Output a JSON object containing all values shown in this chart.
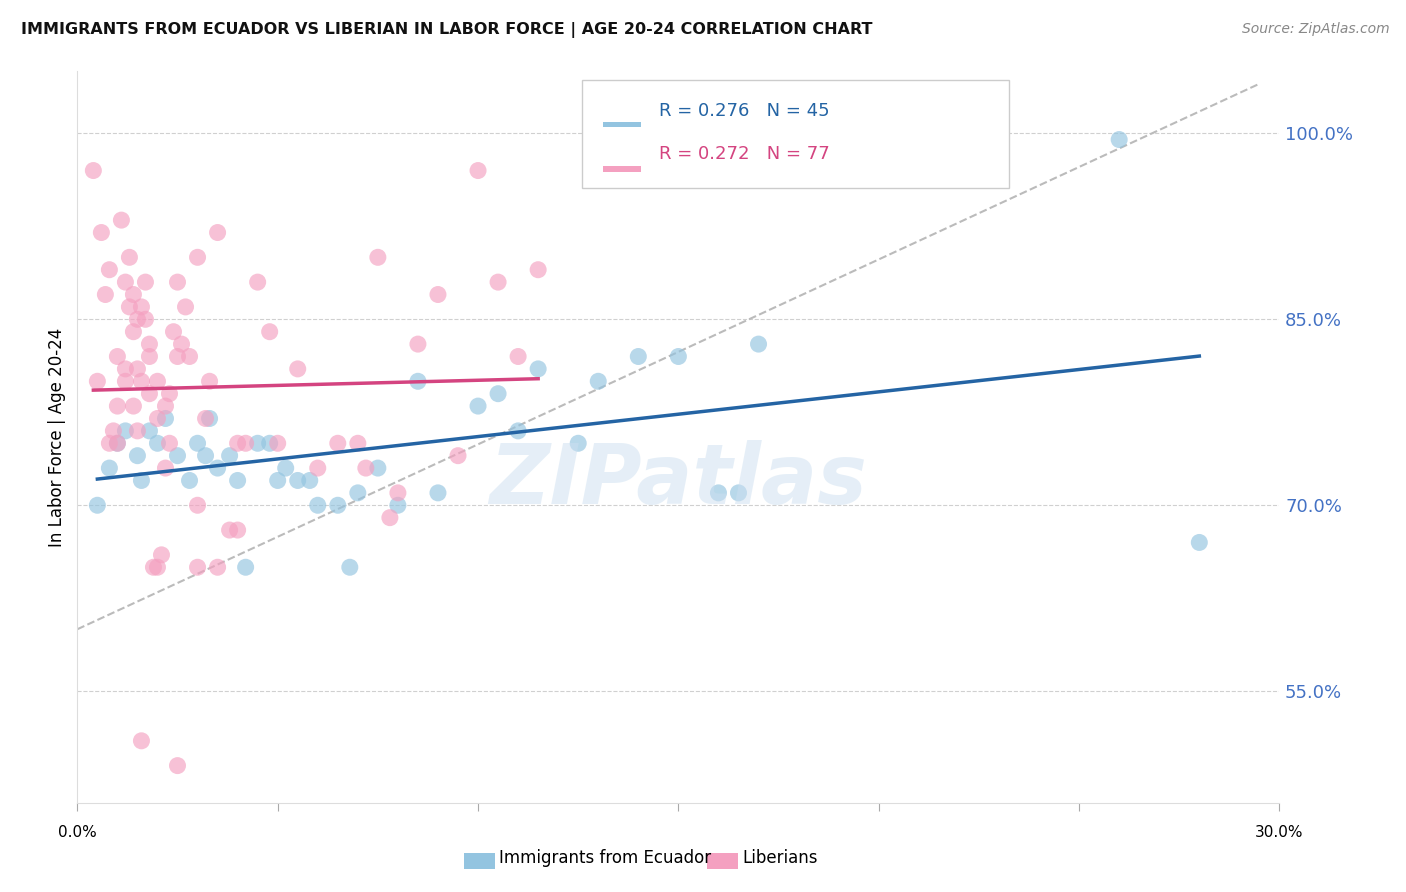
{
  "title": "IMMIGRANTS FROM ECUADOR VS LIBERIAN IN LABOR FORCE | AGE 20-24 CORRELATION CHART",
  "source": "Source: ZipAtlas.com",
  "ylabel": "In Labor Force | Age 20-24",
  "ytick_labels": [
    "100.0%",
    "85.0%",
    "70.0%",
    "55.0%"
  ],
  "ytick_values": [
    1.0,
    0.85,
    0.7,
    0.55
  ],
  "xlim": [
    0.0,
    0.3
  ],
  "ylim": [
    0.46,
    1.05
  ],
  "ecuador_color": "#93c4e0",
  "liberian_color": "#f4a0c0",
  "trendline_ecuador_color": "#2464a4",
  "trendline_liberian_color": "#d44480",
  "trendline_dashed_color": "#bbbbbb",
  "watermark": "ZIPatlas",
  "legend_label1": "Immigrants from Ecuador",
  "legend_label2": "Liberians",
  "ecuador_scatter_x": [
    0.005,
    0.008,
    0.01,
    0.012,
    0.015,
    0.016,
    0.018,
    0.02,
    0.022,
    0.025,
    0.028,
    0.03,
    0.032,
    0.033,
    0.035,
    0.038,
    0.04,
    0.042,
    0.045,
    0.048,
    0.05,
    0.052,
    0.055,
    0.058,
    0.06,
    0.065,
    0.068,
    0.07,
    0.075,
    0.08,
    0.085,
    0.09,
    0.1,
    0.105,
    0.11,
    0.115,
    0.125,
    0.13,
    0.14,
    0.15,
    0.16,
    0.165,
    0.17,
    0.26,
    0.28
  ],
  "ecuador_scatter_y": [
    0.7,
    0.73,
    0.75,
    0.76,
    0.74,
    0.72,
    0.76,
    0.75,
    0.77,
    0.74,
    0.72,
    0.75,
    0.74,
    0.77,
    0.73,
    0.74,
    0.72,
    0.65,
    0.75,
    0.75,
    0.72,
    0.73,
    0.72,
    0.72,
    0.7,
    0.7,
    0.65,
    0.71,
    0.73,
    0.7,
    0.8,
    0.71,
    0.78,
    0.79,
    0.76,
    0.81,
    0.75,
    0.8,
    0.82,
    0.82,
    0.71,
    0.71,
    0.83,
    0.995,
    0.67
  ],
  "liberian_scatter_x": [
    0.004,
    0.005,
    0.006,
    0.007,
    0.008,
    0.009,
    0.01,
    0.01,
    0.011,
    0.012,
    0.012,
    0.013,
    0.013,
    0.014,
    0.014,
    0.015,
    0.015,
    0.016,
    0.016,
    0.017,
    0.017,
    0.018,
    0.018,
    0.019,
    0.02,
    0.02,
    0.021,
    0.022,
    0.023,
    0.023,
    0.024,
    0.025,
    0.025,
    0.026,
    0.027,
    0.028,
    0.03,
    0.03,
    0.032,
    0.033,
    0.035,
    0.038,
    0.04,
    0.042,
    0.045,
    0.048,
    0.05,
    0.055,
    0.06,
    0.065,
    0.07,
    0.072,
    0.075,
    0.078,
    0.08,
    0.085,
    0.09,
    0.095,
    0.1,
    0.105,
    0.11,
    0.115,
    0.016,
    0.03,
    0.025,
    0.035,
    0.04,
    0.015,
    0.02,
    0.022,
    0.018,
    0.012,
    0.014,
    0.01,
    0.008
  ],
  "liberian_scatter_y": [
    0.97,
    0.8,
    0.92,
    0.87,
    0.89,
    0.76,
    0.75,
    0.78,
    0.93,
    0.81,
    0.8,
    0.9,
    0.86,
    0.87,
    0.84,
    0.85,
    0.81,
    0.86,
    0.8,
    0.88,
    0.85,
    0.79,
    0.83,
    0.65,
    0.77,
    0.8,
    0.66,
    0.73,
    0.75,
    0.79,
    0.84,
    0.82,
    0.88,
    0.83,
    0.86,
    0.82,
    0.9,
    0.65,
    0.77,
    0.8,
    0.92,
    0.68,
    0.75,
    0.75,
    0.88,
    0.84,
    0.75,
    0.81,
    0.73,
    0.75,
    0.75,
    0.73,
    0.9,
    0.69,
    0.71,
    0.83,
    0.87,
    0.74,
    0.97,
    0.88,
    0.82,
    0.89,
    0.51,
    0.7,
    0.49,
    0.65,
    0.68,
    0.76,
    0.65,
    0.78,
    0.82,
    0.88,
    0.78,
    0.82,
    0.75
  ]
}
